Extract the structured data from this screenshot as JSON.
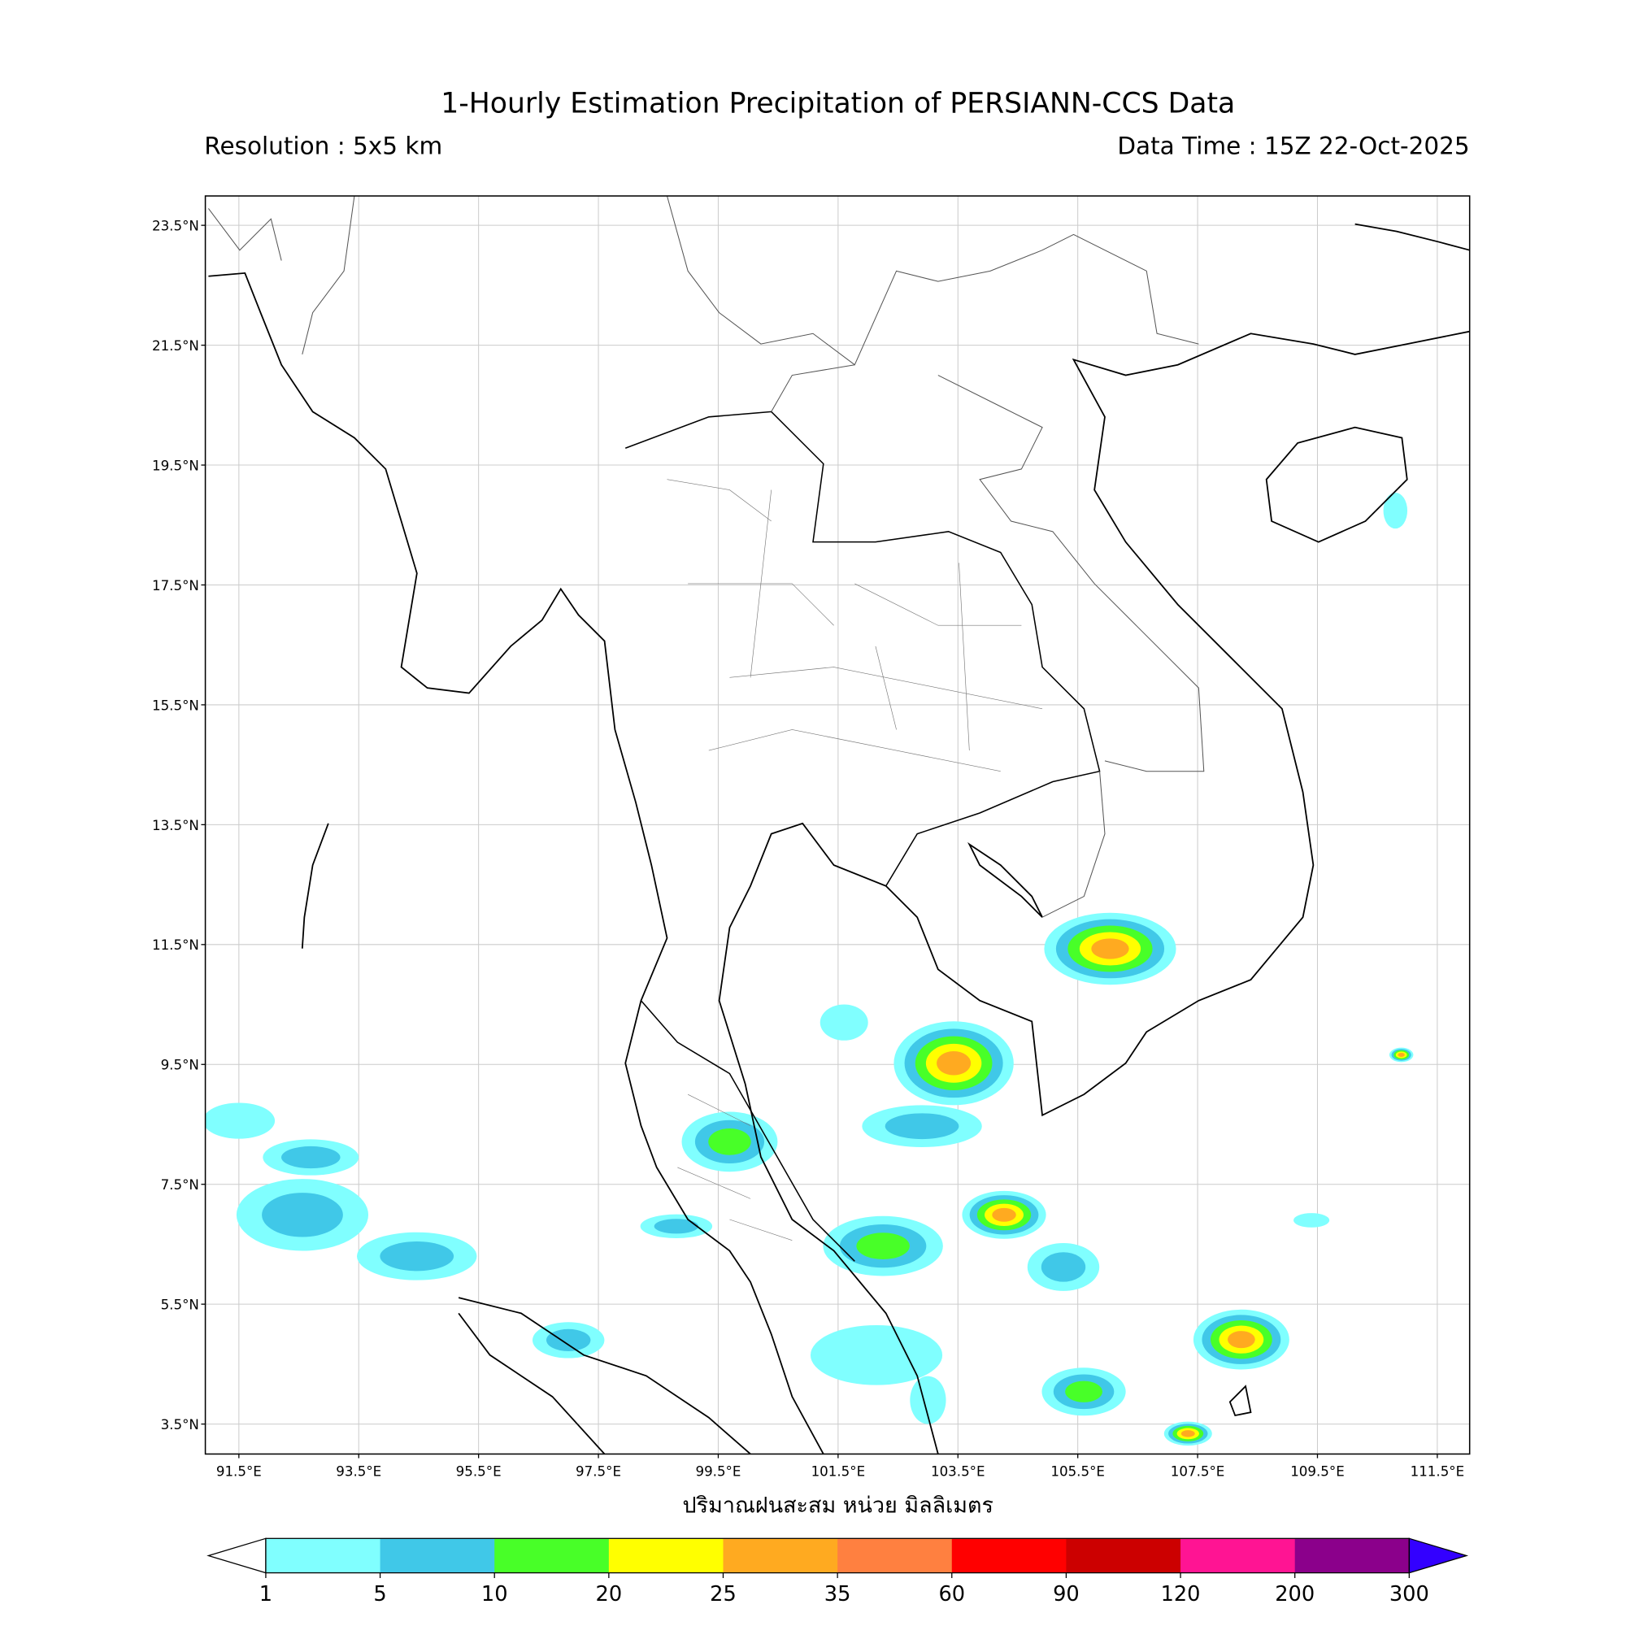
{
  "header": {
    "title": "1-Hourly Estimation Precipitation of PERSIANN-CCS Data",
    "resolution": "Resolution : 5x5 km",
    "data_time": "Data Time : 15Z 22-Oct-2025"
  },
  "chart_data": {
    "type": "heatmap",
    "title": "1-Hourly Estimation Precipitation of PERSIANN-CCS Data",
    "xlabel": "",
    "colorbar_label": "ปริมาณฝนสะสม หน่วย มิลลิเมตร",
    "xlim": [
      90.94,
      112.04
    ],
    "ylim": [
      3.0,
      23.99
    ],
    "grid": true,
    "x_ticks": [
      "91.5°E",
      "93.5°E",
      "95.5°E",
      "97.5°E",
      "99.5°E",
      "101.5°E",
      "103.5°E",
      "105.5°E",
      "107.5°E",
      "109.5°E",
      "111.5°E"
    ],
    "x_tick_values": [
      91.5,
      93.5,
      95.5,
      97.5,
      99.5,
      101.5,
      103.5,
      105.5,
      107.5,
      109.5,
      111.5
    ],
    "y_ticks": [
      "23.5°N",
      "21.5°N",
      "19.5°N",
      "17.5°N",
      "15.5°N",
      "13.5°N",
      "11.5°N",
      "9.5°N",
      "7.5°N",
      "5.5°N",
      "3.5°N"
    ],
    "y_tick_values": [
      23.5,
      21.5,
      19.5,
      17.5,
      15.5,
      13.5,
      11.5,
      9.5,
      7.5,
      5.5,
      3.5
    ],
    "colorbar": {
      "levels": [
        "1",
        "5",
        "10",
        "20",
        "25",
        "35",
        "60",
        "90",
        "120",
        "200",
        "300"
      ],
      "colors": [
        "#80ffff",
        "#40c8e8",
        "#48ff28",
        "#ffff00",
        "#ffaa20",
        "#ff8040",
        "#ff0000",
        "#cc0000",
        "#ff1493",
        "#8b008b"
      ],
      "under_color": "#ffffff",
      "over_color": "#3300ff"
    },
    "rain_cells": [
      {
        "lon": 106.04,
        "lat": 11.43,
        "wlon": 1.1,
        "hlat": 0.6,
        "max_mm": 35
      },
      {
        "lon": 103.43,
        "lat": 9.52,
        "wlon": 1.0,
        "hlat": 0.7,
        "max_mm": 35
      },
      {
        "lon": 102.9,
        "lat": 8.47,
        "wlon": 1.0,
        "hlat": 0.35,
        "max_mm": 10
      },
      {
        "lon": 99.69,
        "lat": 8.21,
        "wlon": 0.8,
        "hlat": 0.5,
        "max_mm": 20
      },
      {
        "lon": 92.56,
        "lat": 6.99,
        "wlon": 1.1,
        "hlat": 0.6,
        "max_mm": 10
      },
      {
        "lon": 92.7,
        "lat": 7.95,
        "wlon": 0.8,
        "hlat": 0.3,
        "max_mm": 10
      },
      {
        "lon": 94.47,
        "lat": 6.3,
        "wlon": 1.0,
        "hlat": 0.4,
        "max_mm": 10
      },
      {
        "lon": 102.25,
        "lat": 6.47,
        "wlon": 1.0,
        "hlat": 0.5,
        "max_mm": 20
      },
      {
        "lon": 104.27,
        "lat": 6.99,
        "wlon": 0.7,
        "hlat": 0.4,
        "max_mm": 35
      },
      {
        "lon": 102.14,
        "lat": 4.65,
        "wlon": 1.1,
        "hlat": 0.5,
        "max_mm": 5
      },
      {
        "lon": 108.23,
        "lat": 4.91,
        "wlon": 0.8,
        "hlat": 0.5,
        "max_mm": 35
      },
      {
        "lon": 105.6,
        "lat": 4.04,
        "wlon": 0.7,
        "hlat": 0.4,
        "max_mm": 20
      },
      {
        "lon": 107.34,
        "lat": 3.34,
        "wlon": 0.4,
        "hlat": 0.2,
        "max_mm": 35
      },
      {
        "lon": 97.0,
        "lat": 4.9,
        "wlon": 0.6,
        "hlat": 0.3,
        "max_mm": 10
      },
      {
        "lon": 91.5,
        "lat": 8.56,
        "wlon": 0.6,
        "hlat": 0.3,
        "max_mm": 5
      },
      {
        "lon": 105.26,
        "lat": 6.12,
        "wlon": 0.6,
        "hlat": 0.4,
        "max_mm": 10
      },
      {
        "lon": 110.9,
        "lat": 9.66,
        "wlon": 0.2,
        "hlat": 0.12,
        "max_mm": 35
      },
      {
        "lon": 110.8,
        "lat": 18.74,
        "wlon": 0.2,
        "hlat": 0.3,
        "max_mm": 5
      },
      {
        "lon": 103.0,
        "lat": 3.9,
        "wlon": 0.3,
        "hlat": 0.4,
        "max_mm": 5
      },
      {
        "lon": 98.8,
        "lat": 6.8,
        "wlon": 0.6,
        "hlat": 0.2,
        "max_mm": 10
      },
      {
        "lon": 101.6,
        "lat": 10.2,
        "wlon": 0.4,
        "hlat": 0.3,
        "max_mm": 5
      },
      {
        "lon": 109.4,
        "lat": 6.9,
        "wlon": 0.3,
        "hlat": 0.12,
        "max_mm": 5
      }
    ]
  }
}
